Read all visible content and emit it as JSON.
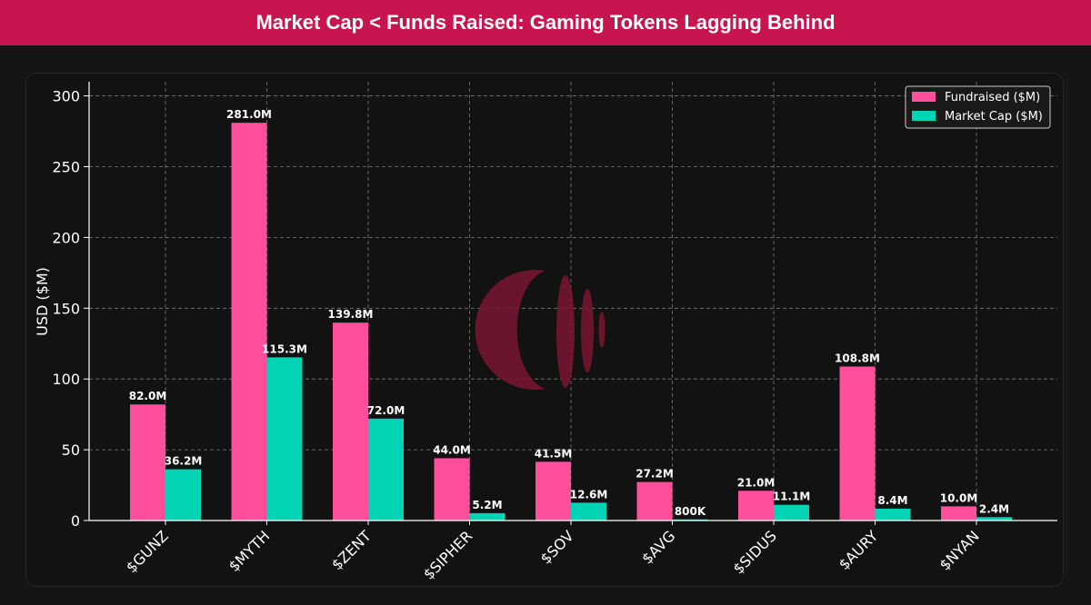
{
  "banner": {
    "title": "Market Cap < Funds Raised: Gaming Tokens Lagging Behind"
  },
  "colors": {
    "banner": "#c8144f",
    "fundraised": "#ff4f9a",
    "market_cap": "#00d4b4",
    "background": "#121212",
    "watermark": "#7a1632"
  },
  "icons": {
    "watermark": "brand-logo-watermark"
  },
  "chart_data": {
    "type": "bar",
    "title": "Market Cap < Funds Raised: Gaming Tokens Lagging Behind",
    "xlabel": "",
    "ylabel": "USD ($M)",
    "ylim": [
      0,
      310
    ],
    "yticks": [
      0,
      50,
      100,
      150,
      200,
      250,
      300
    ],
    "grid": true,
    "legend_position": "top-right",
    "categories": [
      "$GUNZ",
      "$MYTH",
      "$ZENT",
      "$SIPHER",
      "$SOV",
      "$AVG",
      "$SIDUS",
      "$AURY",
      "$NYAN"
    ],
    "series": [
      {
        "name": "Fundraised ($M)",
        "values": [
          82.0,
          281.0,
          139.8,
          44.0,
          41.5,
          27.2,
          21.0,
          108.8,
          10.0
        ],
        "labels": [
          "82.0M",
          "281.0M",
          "139.8M",
          "44.0M",
          "41.5M",
          "27.2M",
          "21.0M",
          "108.8M",
          "10.0M"
        ]
      },
      {
        "name": "Market Cap ($M)",
        "values": [
          36.2,
          115.3,
          72.0,
          5.2,
          12.6,
          0.8,
          11.1,
          8.4,
          2.4
        ],
        "labels": [
          "36.2M",
          "115.3M",
          "72.0M",
          "5.2M",
          "12.6M",
          "800K",
          "11.1M",
          "8.4M",
          "2.4M"
        ]
      }
    ]
  }
}
